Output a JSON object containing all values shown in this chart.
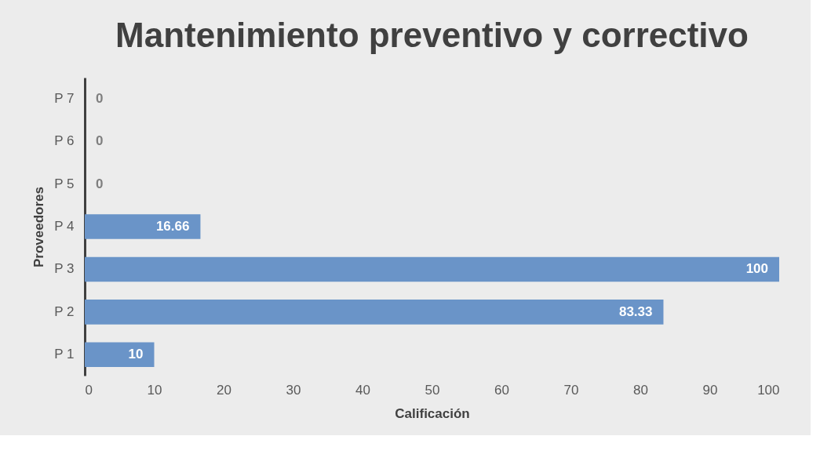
{
  "chart_data": {
    "type": "bar",
    "orientation": "horizontal",
    "title": "Mantenimiento preventivo y correctivo",
    "xlabel": "Calificación",
    "ylabel": "Proveedores",
    "categories": [
      "P 7",
      "P 6",
      "P 5",
      "P 4",
      "P 3",
      "P 2",
      "P 1"
    ],
    "values": [
      0,
      0,
      0,
      16.66,
      100,
      83.33,
      10
    ],
    "color": "#6a94c8",
    "xlim": [
      0,
      100
    ],
    "xticks": [
      0,
      10,
      20,
      30,
      40,
      50,
      60,
      70,
      80,
      90,
      100
    ],
    "data_labels": true,
    "grid": false
  }
}
